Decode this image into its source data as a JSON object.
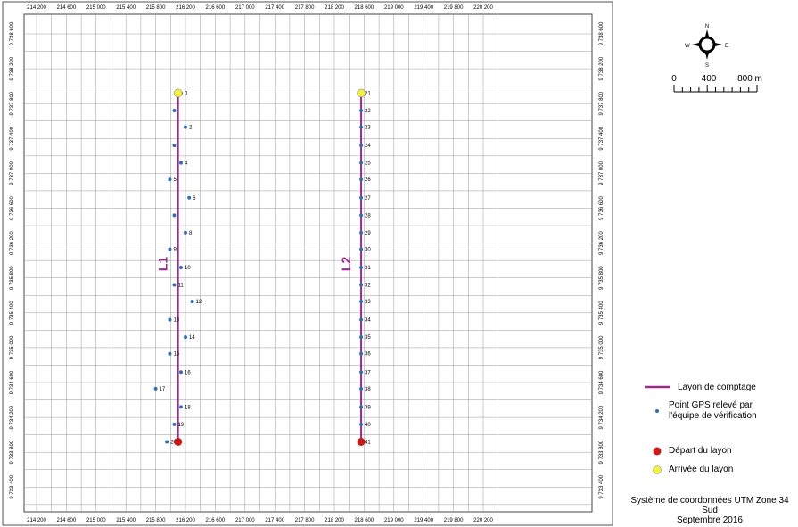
{
  "colors": {
    "layon": "#9b2a8e",
    "gps_point": "#2e6fbd",
    "depart": "#d01818",
    "arrivee": "#f3f33a",
    "grid": "#9a9a9a"
  },
  "map": {
    "x_ticks": [
      "214 200",
      "214 600",
      "215 000",
      "215 400",
      "215 800",
      "216 200",
      "216 600",
      "217 000",
      "217 400",
      "217 800",
      "218 200",
      "218 600",
      "219 000",
      "219 400",
      "219 800",
      "220 200"
    ],
    "y_ticks": [
      "9 738 600",
      "9 738 200",
      "9 737 800",
      "9 737 400",
      "9 737 000",
      "9 736 600",
      "9 736 200",
      "9 735 800",
      "9 735 400",
      "9 735 000",
      "9 734 600",
      "9 734 200",
      "9 733 800",
      "9 733 400"
    ],
    "transects": [
      {
        "label": "L1",
        "x": 216100,
        "y_start": 9733920,
        "y_end": 9737920
      },
      {
        "label": "L2",
        "x": 218560,
        "y_start": 9733920,
        "y_end": 9737920
      }
    ],
    "gps_points": [
      {
        "label": "0",
        "x": 216140,
        "y": 9737920
      },
      {
        "label": "",
        "x": 216050,
        "y": 9737720
      },
      {
        "label": "2",
        "x": 216200,
        "y": 9737530
      },
      {
        "label": "",
        "x": 216050,
        "y": 9737320
      },
      {
        "label": "4",
        "x": 216140,
        "y": 9737120
      },
      {
        "label": "5",
        "x": 215990,
        "y": 9736930
      },
      {
        "label": "6",
        "x": 216250,
        "y": 9736720
      },
      {
        "label": "",
        "x": 216050,
        "y": 9736520
      },
      {
        "label": "8",
        "x": 216200,
        "y": 9736320
      },
      {
        "label": "9",
        "x": 215990,
        "y": 9736130
      },
      {
        "label": "10",
        "x": 216140,
        "y": 9735920
      },
      {
        "label": "11",
        "x": 216050,
        "y": 9735720
      },
      {
        "label": "12",
        "x": 216290,
        "y": 9735530
      },
      {
        "label": "13",
        "x": 215990,
        "y": 9735320
      },
      {
        "label": "14",
        "x": 216200,
        "y": 9735120
      },
      {
        "label": "15",
        "x": 215990,
        "y": 9734930
      },
      {
        "label": "16",
        "x": 216140,
        "y": 9734720
      },
      {
        "label": "17",
        "x": 215800,
        "y": 9734530
      },
      {
        "label": "18",
        "x": 216140,
        "y": 9734320
      },
      {
        "label": "19",
        "x": 216050,
        "y": 9734120
      },
      {
        "label": "20",
        "x": 215950,
        "y": 9733920
      },
      {
        "label": "21",
        "x": 218560,
        "y": 9737920
      },
      {
        "label": "22",
        "x": 218560,
        "y": 9737720
      },
      {
        "label": "23",
        "x": 218560,
        "y": 9737530
      },
      {
        "label": "24",
        "x": 218560,
        "y": 9737320
      },
      {
        "label": "25",
        "x": 218560,
        "y": 9737120
      },
      {
        "label": "26",
        "x": 218560,
        "y": 9736930
      },
      {
        "label": "27",
        "x": 218560,
        "y": 9736720
      },
      {
        "label": "28",
        "x": 218560,
        "y": 9736520
      },
      {
        "label": "29",
        "x": 218560,
        "y": 9736320
      },
      {
        "label": "30",
        "x": 218560,
        "y": 9736130
      },
      {
        "label": "31",
        "x": 218560,
        "y": 9735920
      },
      {
        "label": "32",
        "x": 218560,
        "y": 9735720
      },
      {
        "label": "33",
        "x": 218560,
        "y": 9735530
      },
      {
        "label": "34",
        "x": 218560,
        "y": 9735320
      },
      {
        "label": "35",
        "x": 218560,
        "y": 9735120
      },
      {
        "label": "36",
        "x": 218560,
        "y": 9734930
      },
      {
        "label": "37",
        "x": 218560,
        "y": 9734720
      },
      {
        "label": "38",
        "x": 218560,
        "y": 9734530
      },
      {
        "label": "39",
        "x": 218560,
        "y": 9734320
      },
      {
        "label": "40",
        "x": 218560,
        "y": 9734120
      },
      {
        "label": "41",
        "x": 218560,
        "y": 9733920
      }
    ],
    "depart": [
      {
        "x": 216100,
        "y": 9733920
      },
      {
        "x": 218560,
        "y": 9733920
      }
    ],
    "arrivee": [
      {
        "x": 216100,
        "y": 9737920
      },
      {
        "x": 218560,
        "y": 9737920
      }
    ]
  },
  "north_arrow": {
    "n": "N",
    "s": "S",
    "e": "E",
    "w": "W"
  },
  "scale_bar": {
    "labels": [
      "0",
      "400",
      "800 m"
    ]
  },
  "legend": {
    "layon": "Layon de comptage",
    "gps_line1": "Point GPS relevé par",
    "gps_line2": "l'équipe de vérification",
    "depart": "Départ du layon",
    "arrivee": "Arrivée du layon"
  },
  "footer": {
    "line1": "Système de coordonnées UTM Zone 34 Sud",
    "line2": "Septembre 2016"
  }
}
